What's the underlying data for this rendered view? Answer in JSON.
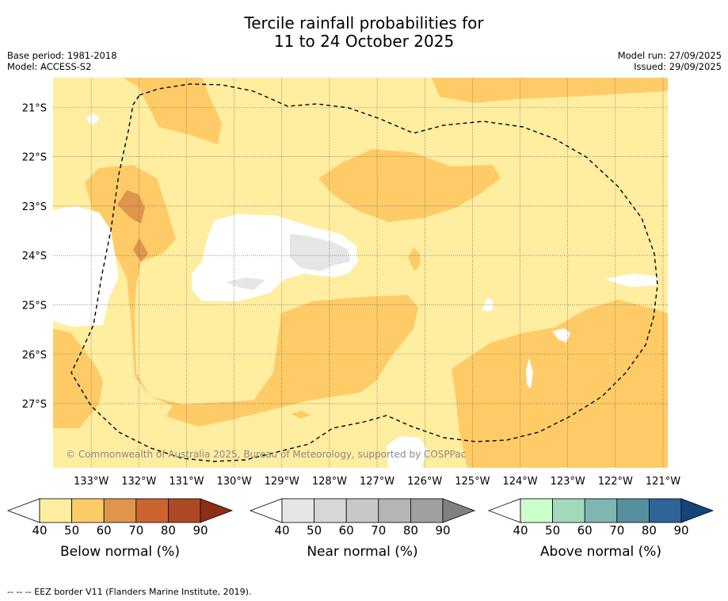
{
  "header": {
    "title_line1": "Tercile rainfall probabilities for",
    "title_line2": "11 to 24 October 2025",
    "base_period": "Base period: 1981-2018",
    "model": "Model: ACCESS-S2",
    "model_run": "Model run: 27/09/2025",
    "issued": "Issued: 29/09/2025"
  },
  "chart_data": {
    "type": "heatmap",
    "title": "Tercile rainfall probabilities for 11 to 24 October 2025",
    "longitude_ticks": [
      "133°W",
      "132°W",
      "131°W",
      "130°W",
      "129°W",
      "128°W",
      "127°W",
      "126°W",
      "125°W",
      "124°W",
      "123°W",
      "122°W",
      "121°W"
    ],
    "latitude_ticks": [
      "21°S",
      "22°S",
      "23°S",
      "24°S",
      "25°S",
      "26°S",
      "27°S"
    ],
    "lon_range": [
      -133.8,
      -120.9
    ],
    "lat_range": [
      -28.3,
      -20.4
    ],
    "grid": true,
    "regions": [
      {
        "category": "Below normal",
        "probability_min": 40,
        "probability_max": 50,
        "color": "#ffeda0",
        "description": "background field"
      },
      {
        "category": "Below normal",
        "probability_min": 50,
        "probability_max": 60,
        "color": "#fecb67",
        "areas": [
          "north-central near 132-131°W, 21-22°S",
          "west 133-131°W, 22.5-26°S",
          "central band 130-126°W, 25-27.5°S",
          "south-east 125-121°W, 25.5-28.3°S",
          "central-east 128-124.5°W, 22.3-23.3°S"
        ]
      },
      {
        "category": "Below normal",
        "probability_min": 60,
        "probability_max": 70,
        "color": "#e0954c",
        "areas": [
          "near 132.3°W, 23°S",
          "near 132°W, 24°S"
        ]
      },
      {
        "category": "No dominant tercile",
        "color": "#ffffff",
        "areas": [
          "130.5-128.5°W, 23.5-25°S",
          "west edge 133.8-132.8°W, 24.5-25.5°S"
        ]
      },
      {
        "category": "Near normal",
        "probability_min": 40,
        "probability_max": 50,
        "color": "#e6e6e6",
        "areas": [
          "near 128.5°W, 24°S",
          "near 130°W, 24.8°S"
        ]
      }
    ],
    "legends": [
      {
        "label": "Below normal (%)",
        "ticks": [
          40,
          50,
          60,
          70,
          80,
          90
        ],
        "colors": [
          "#ffffff",
          "#ffeda0",
          "#fecb67",
          "#e0954c",
          "#cb6431",
          "#ad4a24",
          "#8c2f17"
        ]
      },
      {
        "label": "Near normal (%)",
        "ticks": [
          40,
          50,
          60,
          70,
          80,
          90
        ],
        "colors": [
          "#ffffff",
          "#e6e6e6",
          "#d7d7d7",
          "#c8c8c8",
          "#b5b5b5",
          "#a0a0a0",
          "#808080"
        ]
      },
      {
        "label": "Above normal (%)",
        "ticks": [
          40,
          50,
          60,
          70,
          80,
          90
        ],
        "colors": [
          "#ffffff",
          "#ccffcc",
          "#a2d9bd",
          "#80b6b1",
          "#588f9f",
          "#2e6496",
          "#14457a"
        ]
      }
    ],
    "annotation": "© Commonwealth of Australia 2025, Bureau of Meteorology, supported by COSPPac",
    "border_legend": "-- -- -- EEZ border V11 (Flanders Marine Institute, 2019)."
  }
}
